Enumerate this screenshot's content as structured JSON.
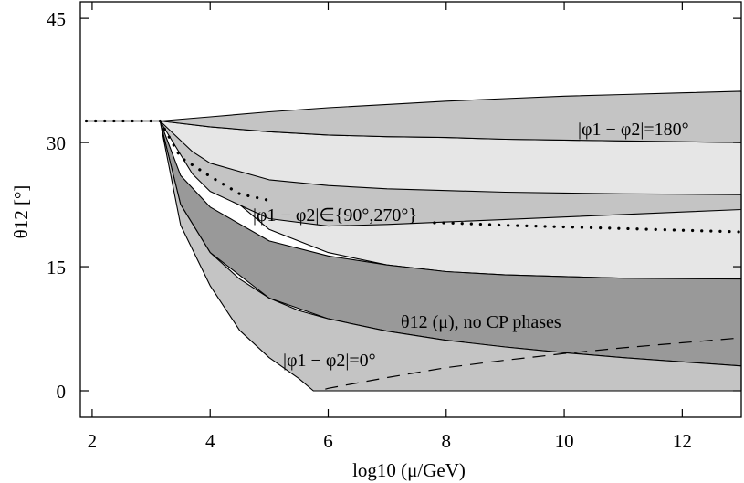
{
  "chart_data": {
    "type": "area",
    "xlabel": "log10 (μ/GeV)",
    "ylabel": "θ12 [°]",
    "xlim": [
      1.8,
      13.0
    ],
    "ylim": [
      -3.2,
      47.0
    ],
    "xticks": [
      2,
      4,
      6,
      8,
      10,
      12
    ],
    "yticks": [
      0,
      15,
      30,
      45
    ],
    "grid": false,
    "colors": {
      "light": "#e6e6e6",
      "medium": "#c4c4c4",
      "dark": "#999999",
      "line": "#000000"
    },
    "annotations": {
      "phase_180": "|φ1 − φ2|=180°",
      "phase_90_270": "|φ1 − φ2|∈{90°,270°}",
      "no_cp": "θ12 (μ), no CP phases",
      "phase_0": "|φ1 − φ2|=0°"
    },
    "series": [
      {
        "band": "light",
        "x": [
          3.15,
          4,
          5,
          6,
          7,
          8,
          9,
          10,
          11,
          12,
          13
        ],
        "upper": [
          32.6,
          31.9,
          31.3,
          30.9,
          30.7,
          30.6,
          30.4,
          30.3,
          30.2,
          30.1,
          30.0
        ],
        "lower": [
          32.6,
          25.5,
          19.5,
          16.7,
          15.2,
          14.4,
          14.0,
          13.8,
          13.6,
          13.55,
          13.5
        ]
      },
      {
        "band": "medium",
        "x": [
          3.15,
          4,
          5,
          6,
          7,
          8,
          9,
          10,
          11,
          12,
          13
        ],
        "upper": [
          32.6,
          33.1,
          33.7,
          34.2,
          34.6,
          35.0,
          35.3,
          35.6,
          35.8,
          36.0,
          36.2
        ],
        "lower": [
          32.6,
          31.9,
          31.3,
          30.9,
          30.7,
          30.6,
          30.4,
          30.3,
          30.2,
          30.1,
          30.0
        ]
      },
      {
        "band": "medium",
        "x": [
          3.15,
          3.7,
          4,
          5,
          6,
          7,
          8,
          9,
          10,
          11,
          12,
          13
        ],
        "upper": [
          32.6,
          28.9,
          27.5,
          25.5,
          24.8,
          24.4,
          24.2,
          24.0,
          23.9,
          23.8,
          23.75,
          23.7
        ],
        "lower": [
          32.6,
          26.2,
          24.1,
          20.8,
          19.9,
          20.1,
          20.4,
          20.7,
          21.0,
          21.3,
          21.6,
          21.9
        ]
      },
      {
        "band": "dark",
        "x": [
          3.15,
          3.5,
          4,
          5,
          6,
          7,
          8,
          9,
          10,
          11,
          12,
          13
        ],
        "upper": [
          32.6,
          26.0,
          22.2,
          18.1,
          16.3,
          15.2,
          14.4,
          14.0,
          13.8,
          13.6,
          13.55,
          13.5
        ],
        "lower": [
          32.6,
          22.5,
          16.7,
          11.2,
          8.7,
          7.2,
          6.1,
          5.3,
          4.6,
          4.0,
          3.5,
          3.0
        ]
      },
      {
        "band": "medium",
        "x": [
          3.15,
          3.5,
          4,
          4.5,
          5,
          5.5,
          5.75,
          6,
          7,
          8,
          9,
          10,
          11,
          12,
          13
        ],
        "upper": [
          32.6,
          22.5,
          16.7,
          13.5,
          11.2,
          9.7,
          9.2,
          8.7,
          7.2,
          6.1,
          5.3,
          4.6,
          4.0,
          3.5,
          3.0
        ],
        "lower": [
          32.6,
          20.0,
          12.7,
          7.3,
          4.0,
          1.5,
          0,
          0,
          0,
          0,
          0,
          0,
          0,
          0,
          0
        ]
      },
      {
        "name": "θ12 (μ), no CP phases",
        "line": "dotted-upper",
        "x": [
          1.9,
          2.5,
          3.15,
          3.5,
          4,
          4.5,
          5
        ],
        "y": [
          32.6,
          32.6,
          32.6,
          28.2,
          25.9,
          23.8,
          23.0
        ]
      },
      {
        "name": "dotted-lower",
        "line": "dotted",
        "x": [
          7.8,
          8,
          9,
          10,
          11,
          12,
          13
        ],
        "y": [
          20.3,
          20.3,
          20.0,
          19.8,
          19.6,
          19.4,
          19.2
        ]
      },
      {
        "name": "dashed",
        "line": "dashed",
        "x": [
          5.95,
          6,
          7,
          8,
          9,
          10,
          11,
          12,
          13
        ],
        "y": [
          0.2,
          0.3,
          1.6,
          2.8,
          3.7,
          4.5,
          5.2,
          5.8,
          6.4
        ]
      },
      {
        "name": "initial",
        "line": "solid",
        "x": [
          1.9,
          3.15
        ],
        "y": [
          32.6,
          32.6
        ]
      }
    ]
  }
}
